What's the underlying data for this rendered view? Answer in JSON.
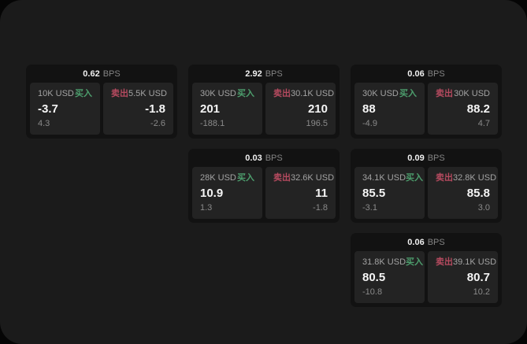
{
  "colors": {
    "page_bg": "#050505",
    "surface_bg": "#1b1b1b",
    "card_bg": "#121212",
    "panel_bg": "#232323",
    "buy_green": "#4d9e6d",
    "sell_red": "#b54a5f",
    "text_primary": "#f5f5f5",
    "text_secondary": "#a3a3a3",
    "text_muted": "#8a8a8a"
  },
  "labels": {
    "bps_suffix": "BPS",
    "buy": "买入",
    "sell": "卖出"
  },
  "cards": [
    {
      "row": 1,
      "col": 1,
      "bps": "0.62",
      "buy": {
        "amount": "10K USD",
        "value": "-3.7",
        "sub": "4.3"
      },
      "sell": {
        "amount": "5.5K USD",
        "value": "-1.8",
        "sub": "-2.6"
      }
    },
    {
      "row": 1,
      "col": 2,
      "bps": "2.92",
      "buy": {
        "amount": "30K USD",
        "value": "201",
        "sub": "-188.1"
      },
      "sell": {
        "amount": "30.1K USD",
        "value": "210",
        "sub": "196.5"
      }
    },
    {
      "row": 1,
      "col": 3,
      "bps": "0.06",
      "buy": {
        "amount": "30K USD",
        "value": "88",
        "sub": "-4.9"
      },
      "sell": {
        "amount": "30K USD",
        "value": "88.2",
        "sub": "4.7"
      }
    },
    {
      "row": 2,
      "col": 2,
      "bps": "0.03",
      "buy": {
        "amount": "28K USD",
        "value": "10.9",
        "sub": "1.3"
      },
      "sell": {
        "amount": "32.6K USD",
        "value": "11",
        "sub": "-1.8"
      }
    },
    {
      "row": 2,
      "col": 3,
      "bps": "0.09",
      "buy": {
        "amount": "34.1K USD",
        "value": "85.5",
        "sub": "-3.1"
      },
      "sell": {
        "amount": "32.8K USD",
        "value": "85.8",
        "sub": "3.0"
      }
    },
    {
      "row": 3,
      "col": 3,
      "bps": "0.06",
      "buy": {
        "amount": "31.8K USD",
        "value": "80.5",
        "sub": "-10.8"
      },
      "sell": {
        "amount": "39.1K USD",
        "value": "80.7",
        "sub": "10.2"
      }
    }
  ]
}
